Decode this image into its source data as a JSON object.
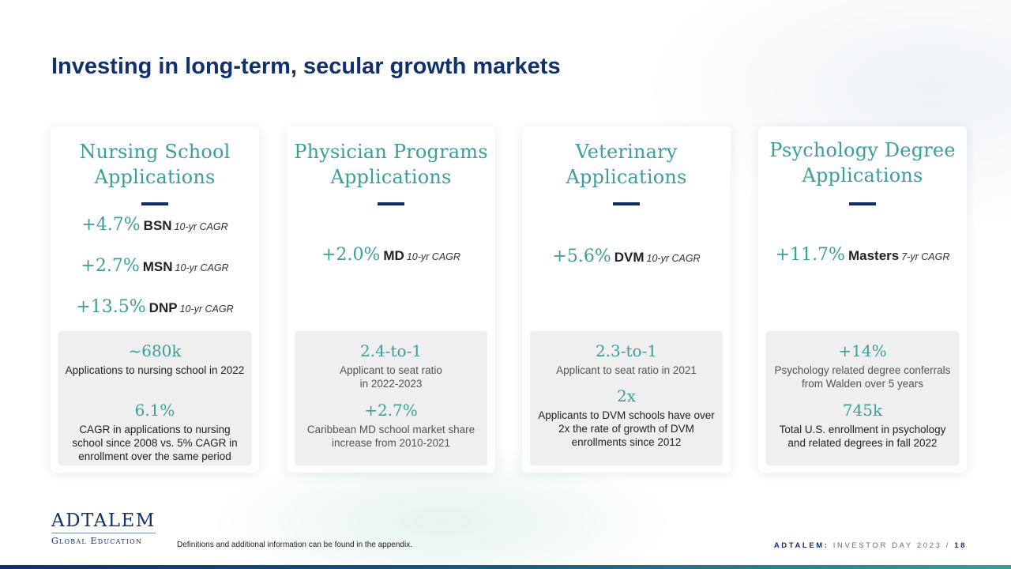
{
  "title": "Investing in long-term, secular growth markets",
  "cards": [
    {
      "title_line1": "Nursing School",
      "title_line2": "Applications",
      "metrics": [
        {
          "value": "+4.7%",
          "name": "BSN",
          "note": "10-yr CAGR"
        },
        {
          "value": "+2.7%",
          "name": "MSN",
          "note": "10-yr CAGR"
        },
        {
          "value": "+13.5%",
          "name": "DNP",
          "note": "10-yr CAGR"
        }
      ],
      "stats": [
        {
          "value": "~680k",
          "desc": "Applications to nursing school in 2022"
        },
        {
          "value": "6.1%",
          "desc": "CAGR in applications to nursing school since 2008 vs. 5% CAGR in enrollment over the same period"
        }
      ]
    },
    {
      "title_line1": "Physician Programs",
      "title_line2": "Applications",
      "metrics": [
        {
          "value": "+2.0%",
          "name": "MD",
          "note": "10-yr CAGR"
        }
      ],
      "stats": [
        {
          "value": "2.4-to-1",
          "desc_line1": "Applicant to seat ratio",
          "desc_line2": "in 2022-2023"
        },
        {
          "value": "+2.7%",
          "desc": "Caribbean MD school market share increase from 2010-2021"
        }
      ]
    },
    {
      "title_line1": "Veterinary",
      "title_line2": "Applications",
      "metrics": [
        {
          "value": "+5.6%",
          "name": "DVM",
          "note": "10-yr CAGR"
        }
      ],
      "stats": [
        {
          "value": "2.3-to-1",
          "desc": "Applicant to seat ratio in 2021"
        },
        {
          "value": "2x",
          "desc": "Applicants to DVM schools have over 2x the rate of growth of DVM enrollments since 2012"
        }
      ]
    },
    {
      "title_line1": "Psychology Degree",
      "title_line2": "Applications",
      "metrics": [
        {
          "value": "+11.7%",
          "name": "Masters",
          "note": "7-yr CAGR"
        }
      ],
      "stats": [
        {
          "value": "+14%",
          "desc": "Psychology related degree conferrals from Walden over 5 years"
        },
        {
          "value": "745k",
          "desc": "Total U.S. enrollment in psychology and related degrees in fall 2022"
        }
      ]
    }
  ],
  "logo": {
    "main": "ADTALEM",
    "sub": "Global Education"
  },
  "footnote": "Definitions and additional information can be found in the appendix.",
  "footer": {
    "brand": "ADTALEM:",
    "event": "INVESTOR DAY 2023",
    "separator": "/",
    "page": "18"
  }
}
